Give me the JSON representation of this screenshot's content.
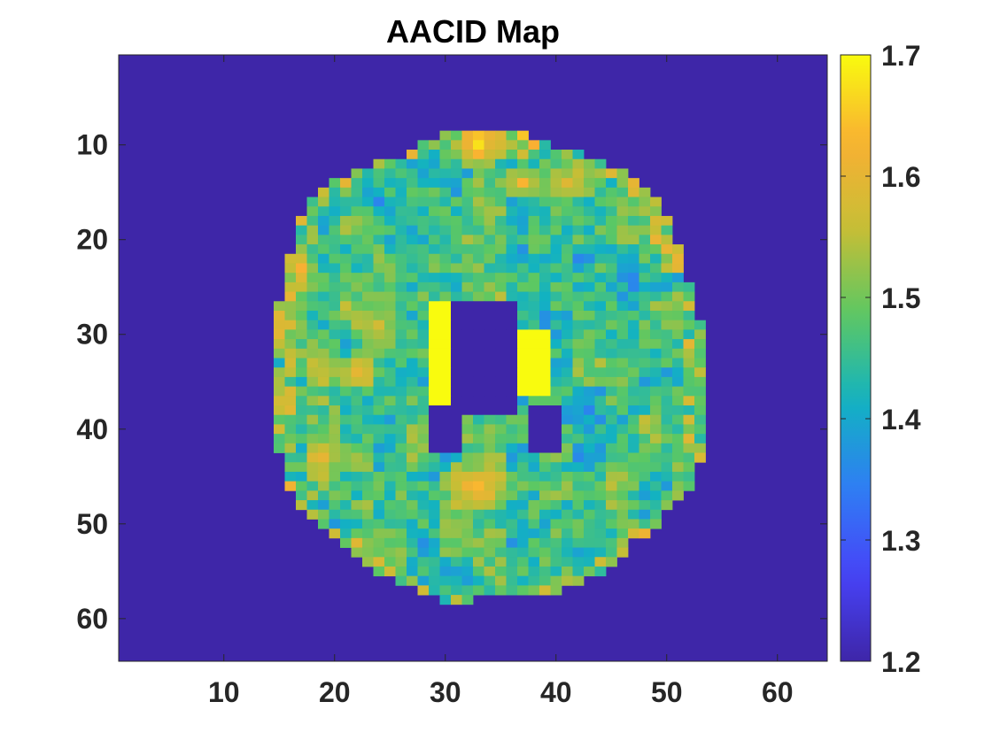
{
  "chart_data": {
    "type": "heatmap",
    "title": "AACID Map",
    "xlabel": "",
    "ylabel": "",
    "x_range": [
      0.5,
      64.5
    ],
    "y_range": [
      0.5,
      64.5
    ],
    "y_reversed": true,
    "x_ticks": [
      "10",
      "20",
      "30",
      "40",
      "50",
      "60"
    ],
    "y_ticks": [
      "10",
      "20",
      "30",
      "40",
      "50",
      "60"
    ],
    "colorbar": {
      "min": 1.2,
      "max": 1.7,
      "ticks": [
        "1.2",
        "1.3",
        "1.4",
        "1.5",
        "1.6",
        "1.7"
      ],
      "colormap": "parula",
      "colors": [
        "#3e26a8",
        "#4743f8",
        "#2f7ef4",
        "#12b2c2",
        "#5cc863",
        "#c7be35",
        "#f9b033",
        "#f9fb0e"
      ]
    },
    "background_value": 1.2,
    "brain_mask": {
      "description_rows": "per row: [row, col_start, col_end] of nonzero tissue",
      "rows": [
        [
          9,
          30,
          37
        ],
        [
          10,
          28,
          39
        ],
        [
          11,
          27,
          42
        ],
        [
          12,
          24,
          44
        ],
        [
          13,
          22,
          46
        ],
        [
          14,
          20,
          47
        ],
        [
          15,
          19,
          48
        ],
        [
          16,
          18,
          49
        ],
        [
          17,
          18,
          49
        ],
        [
          18,
          17,
          50
        ],
        [
          19,
          17,
          50
        ],
        [
          20,
          17,
          50
        ],
        [
          21,
          17,
          51
        ],
        [
          22,
          16,
          51
        ],
        [
          23,
          16,
          51
        ],
        [
          24,
          16,
          51
        ],
        [
          25,
          16,
          52
        ],
        [
          26,
          16,
          52
        ],
        [
          27,
          15,
          52
        ],
        [
          28,
          15,
          52
        ],
        [
          29,
          15,
          53
        ],
        [
          30,
          15,
          53
        ],
        [
          31,
          15,
          53
        ],
        [
          32,
          15,
          53
        ],
        [
          33,
          15,
          53
        ],
        [
          34,
          15,
          53
        ],
        [
          35,
          15,
          53
        ],
        [
          36,
          15,
          53
        ],
        [
          37,
          15,
          53
        ],
        [
          38,
          15,
          53
        ],
        [
          39,
          15,
          53
        ],
        [
          40,
          15,
          53
        ],
        [
          41,
          15,
          53
        ],
        [
          42,
          15,
          53
        ],
        [
          43,
          16,
          53
        ],
        [
          44,
          16,
          52
        ],
        [
          45,
          16,
          52
        ],
        [
          46,
          16,
          52
        ],
        [
          47,
          17,
          51
        ],
        [
          48,
          17,
          50
        ],
        [
          49,
          18,
          49
        ],
        [
          50,
          19,
          49
        ],
        [
          51,
          20,
          48
        ],
        [
          52,
          21,
          46
        ],
        [
          53,
          22,
          46
        ],
        [
          54,
          23,
          45
        ],
        [
          55,
          24,
          44
        ],
        [
          56,
          26,
          42
        ],
        [
          57,
          28,
          40
        ],
        [
          58,
          30,
          32
        ]
      ]
    },
    "ventricles": {
      "high_value_regions": [
        {
          "rows": [
            27,
            37
          ],
          "cols": [
            29,
            31
          ],
          "value": 1.7
        },
        {
          "rows": [
            30,
            36
          ],
          "cols": [
            37,
            39
          ],
          "value": 1.7
        }
      ],
      "low_value_regions": [
        {
          "rows": [
            27,
            38
          ],
          "cols": [
            31,
            36
          ],
          "value": 1.2
        },
        {
          "rows": [
            38,
            42
          ],
          "cols": [
            29,
            31
          ],
          "value": 1.2
        },
        {
          "rows": [
            38,
            42
          ],
          "cols": [
            38,
            40
          ],
          "value": 1.2
        }
      ]
    },
    "hotspots": [
      {
        "row": 46,
        "col": 33,
        "radius": 3.5,
        "value": 1.63
      },
      {
        "row": 10,
        "col": 33,
        "radius": 2.5,
        "value": 1.68
      },
      {
        "row": 14,
        "col": 37,
        "radius": 2.0,
        "value": 1.64
      },
      {
        "row": 14,
        "col": 41,
        "radius": 2.5,
        "value": 1.6
      },
      {
        "row": 34,
        "col": 22,
        "radius": 2.5,
        "value": 1.6
      },
      {
        "row": 29,
        "col": 24,
        "radius": 2.5,
        "value": 1.58
      },
      {
        "row": 43,
        "col": 19,
        "radius": 2.0,
        "value": 1.6
      },
      {
        "row": 23,
        "col": 17,
        "radius": 1.5,
        "value": 1.62
      },
      {
        "row": 29,
        "col": 15,
        "radius": 1.5,
        "value": 1.6
      }
    ],
    "tissue_mean": 1.46
  }
}
